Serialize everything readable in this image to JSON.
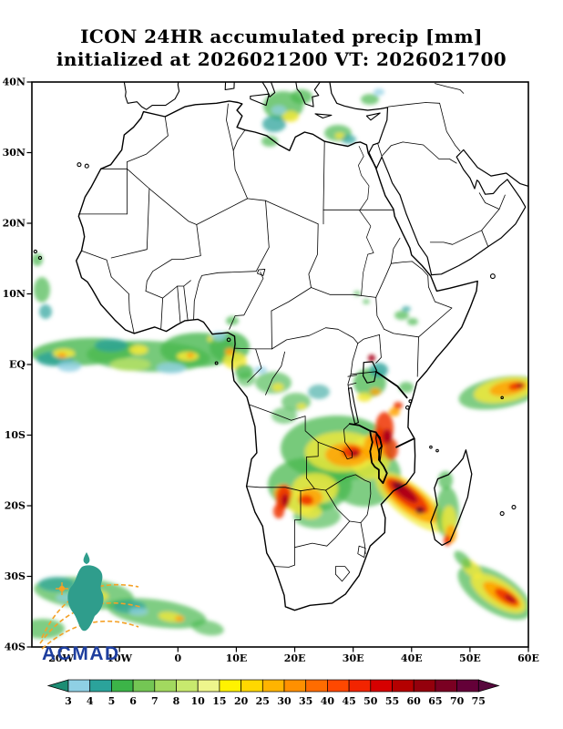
{
  "title": {
    "line1": "ICON 24HR accumulated precip [mm]",
    "line2": "initialized at 2026021200 VT: 2026021700"
  },
  "logo": {
    "text": "ACMAD"
  },
  "chart_data": {
    "type": "heatmap",
    "title": "ICON 24HR accumulated precip [mm]",
    "subtitle": "initialized at 2026021200 VT: 2026021700",
    "model": "ICON",
    "accumulation": "24HR",
    "units": "mm",
    "init_time": "2026021200",
    "valid_time": "2026021700",
    "domain": {
      "lon_min": "25W",
      "lon_max": "60E",
      "lat_min": "40S",
      "lat_max": "40N"
    },
    "y_ticks": [
      {
        "label": "40N",
        "deg": 40
      },
      {
        "label": "30N",
        "deg": 30
      },
      {
        "label": "20N",
        "deg": 20
      },
      {
        "label": "10N",
        "deg": 10
      },
      {
        "label": "EQ",
        "deg": 0
      },
      {
        "label": "10S",
        "deg": -10
      },
      {
        "label": "20S",
        "deg": -20
      },
      {
        "label": "30S",
        "deg": -30
      },
      {
        "label": "40S",
        "deg": -40
      }
    ],
    "x_ticks": [
      {
        "label": "20W",
        "deg": -20
      },
      {
        "label": "10W",
        "deg": -10
      },
      {
        "label": "0",
        "deg": 0
      },
      {
        "label": "10E",
        "deg": 10
      },
      {
        "label": "20E",
        "deg": 20
      },
      {
        "label": "30E",
        "deg": 30
      },
      {
        "label": "40E",
        "deg": 40
      },
      {
        "label": "50E",
        "deg": 50
      },
      {
        "label": "60E",
        "deg": 60
      }
    ],
    "colorbar": {
      "units": "mm",
      "tick_values": [
        3,
        4,
        5,
        6,
        7,
        8,
        10,
        15,
        20,
        25,
        30,
        35,
        40,
        45,
        50,
        55,
        60,
        65,
        70,
        75
      ],
      "colors": [
        "#1d8d74",
        "#8fd0e4",
        "#2ba39b",
        "#3cb448",
        "#74c654",
        "#a2d95f",
        "#c8e96e",
        "#eef58c",
        "#fff200",
        "#ffd800",
        "#ffb400",
        "#ff9000",
        "#ff6c00",
        "#ff4800",
        "#f22400",
        "#d60000",
        "#b40000",
        "#94000c",
        "#7a0022",
        "#640038",
        "#57083d"
      ]
    },
    "features": [
      {
        "area": "Tropical Atlantic / Gulf of Guinea ITCZ band (25W-10E, 0-6N)",
        "peak_mm": "15-30"
      },
      {
        "area": "Cameroon / Nigeria coast cluster (5-12E, 0-6N)",
        "peak_mm": "20-35"
      },
      {
        "area": "Congo Basin scattered showers (12-30E, 0-8S)",
        "peak_mm": "8-20"
      },
      {
        "area": "Lake Victoria / NW Tanzania patch (30-36E, 2N-4S)",
        "peak_mm": "20-60"
      },
      {
        "area": "Angola-Zambia-Zimbabwe-Mozambique broad rain area (15-37E, 8-23S)",
        "peak_mm": "35-55"
      },
      {
        "area": "NW Namibia / SW Angola core (14-19E, 16-21S)",
        "peak_mm": "50-65"
      },
      {
        "area": "Malawi and Mozambique Channel band into Madagascar (34-45E, 13-22S)",
        "peak_mm": "60-75"
      },
      {
        "area": "Madagascar (43-50E, 12-26S)",
        "peak_mm": "30-55"
      },
      {
        "area": "Indian Ocean streak east of 50E near 2-8S",
        "peak_mm": "25-45"
      },
      {
        "area": "SW Indian Ocean frontal band (47-60E, 27-36S)",
        "peak_mm": "45-70"
      },
      {
        "area": "South Atlantic band (25W-5E, 28-39S)",
        "peak_mm": "10-25"
      },
      {
        "area": "Central Mediterranean / Greece / Turkey patches (14-33E, 30-40N)",
        "peak_mm": "10-25"
      },
      {
        "area": "Ethiopian highlands isolated cells (34-47E, 5-15N)",
        "peak_mm": "5-10"
      }
    ]
  }
}
